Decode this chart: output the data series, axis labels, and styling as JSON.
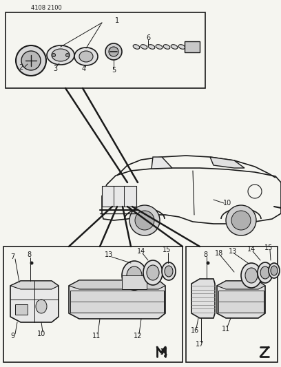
{
  "bg_color": "#f5f5f0",
  "line_color": "#1a1a1a",
  "fig_width": 4.08,
  "fig_height": 5.33,
  "dpi": 100,
  "header": "4108 2100"
}
